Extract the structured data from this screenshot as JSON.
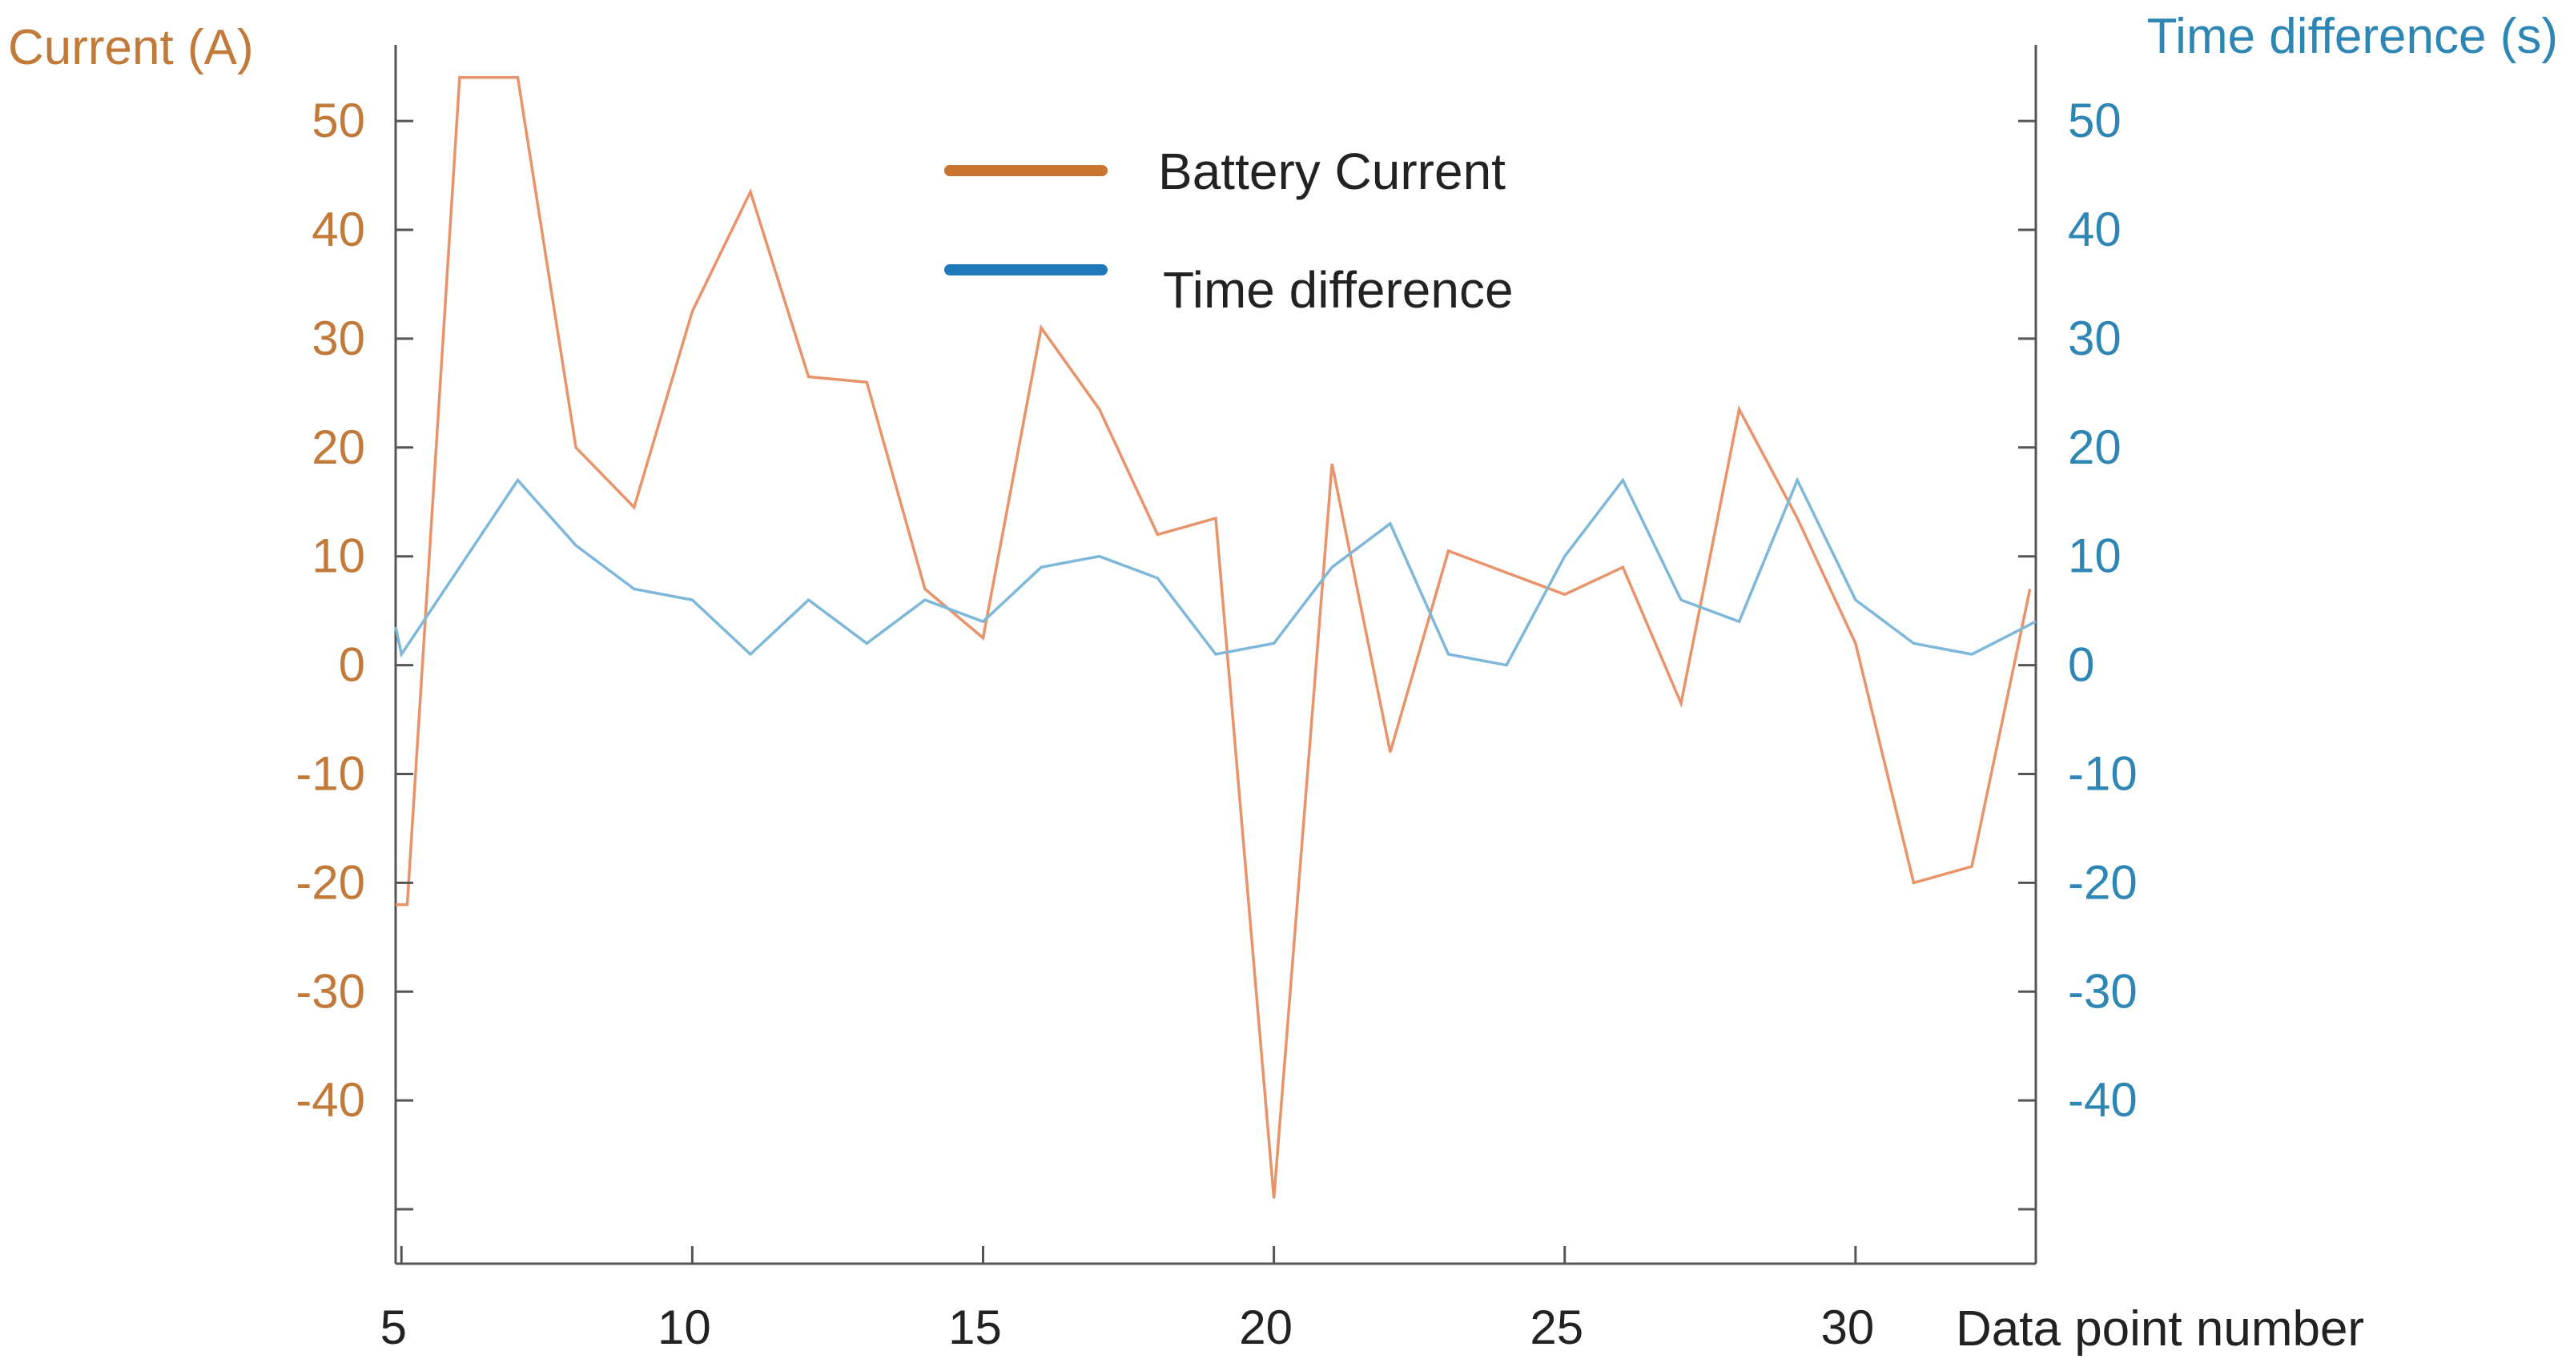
{
  "chart_data": {
    "type": "line",
    "xlabel": "Data point number",
    "ylabel_left": "Current (A)",
    "ylabel_right": "Time difference (s)",
    "xlim": [
      4.9,
      33.1
    ],
    "ylim": [
      -55,
      57
    ],
    "x_ticks": [
      5,
      10,
      15,
      20,
      25,
      30
    ],
    "y_ticks_left": [
      50,
      40,
      30,
      20,
      10,
      0,
      -10,
      -20,
      -30,
      -40
    ],
    "y_ticks_right": [
      50,
      40,
      30,
      20,
      10,
      0,
      -10,
      -20,
      -30,
      -40
    ],
    "legend_placement": "top-center",
    "grid": false,
    "colors": {
      "current": "#E8936A",
      "time_difference": "#7DB8DA",
      "legend_current": "#C97530",
      "legend_time_difference": "#1F78B8",
      "left_axis_text": "#C27A3A",
      "right_axis_text": "#2E86B5"
    },
    "series": [
      {
        "name": "Battery Current",
        "axis": "left",
        "x": [
          4.9,
          5.1,
          6,
          7,
          8,
          9,
          10,
          11,
          12,
          13,
          14,
          15,
          16,
          17,
          18,
          19,
          20,
          21,
          22,
          23,
          24,
          25,
          26,
          27,
          28,
          29,
          30,
          31,
          32,
          33
        ],
        "values": [
          -22,
          -22,
          54,
          54,
          20,
          14.5,
          32.5,
          43.5,
          26.5,
          26,
          7,
          2.5,
          31,
          23.5,
          12,
          13.5,
          -49,
          18.5,
          -8,
          10.5,
          8.5,
          6.5,
          9,
          -3.5,
          23.5,
          13.5,
          2,
          -20,
          -18.5,
          7
        ]
      },
      {
        "name": "Time difference",
        "axis": "right",
        "x": [
          4.9,
          5,
          6,
          7,
          8,
          9,
          10,
          11,
          12,
          13,
          14,
          15,
          16,
          17,
          18,
          19,
          20,
          21,
          22,
          23,
          24,
          25,
          26,
          27,
          28,
          29,
          30,
          31,
          32,
          33.1
        ],
        "values": [
          3.5,
          1,
          9,
          17,
          11,
          7,
          6,
          1,
          6,
          2,
          6,
          4,
          9,
          10,
          8,
          1,
          2,
          9,
          13,
          1,
          0,
          10,
          17,
          6,
          4,
          17,
          6,
          2,
          1,
          4
        ]
      }
    ]
  }
}
